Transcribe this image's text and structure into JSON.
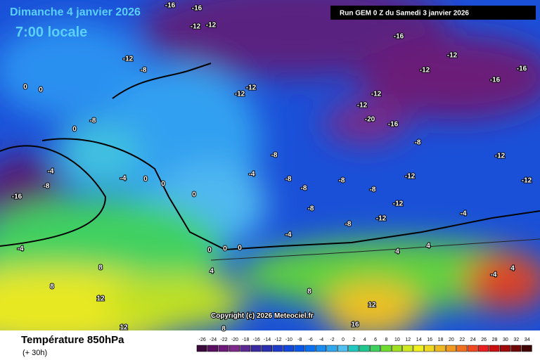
{
  "header": {
    "date": "Dimanche 4 janvier 2026",
    "time": "7:00 locale",
    "run": "Run GEM 0 Z du Samedi 3 janvier 2026"
  },
  "copyright": "Copyright (c) 2026 Meteociel.fr",
  "footer": {
    "title": "Température 850hPa",
    "lead": "(+ 30h)"
  },
  "contour_labels": [
    -16,
    -16,
    -12,
    -12,
    -16,
    -12,
    -8,
    -12,
    -12,
    -16,
    -16,
    -12,
    -12,
    -12,
    -12,
    -20,
    -16,
    -8,
    0,
    0,
    0,
    -16,
    -8,
    -4,
    -4,
    0,
    0,
    0,
    -8,
    -4,
    -8,
    -8,
    -8,
    -8,
    -12,
    -12,
    -12,
    -8,
    -12,
    -12,
    -4,
    -8,
    -8,
    -4,
    0,
    0,
    0,
    -4,
    4,
    4,
    4,
    8,
    8,
    8,
    12,
    12,
    16,
    12,
    8,
    4,
    -4
  ],
  "scale": {
    "ticks": [
      -26,
      -24,
      -22,
      -20,
      -18,
      -16,
      -14,
      -12,
      -10,
      -8,
      -6,
      -4,
      -2,
      0,
      2,
      4,
      6,
      8,
      10,
      12,
      14,
      16,
      18,
      20,
      22,
      24,
      26,
      28,
      30,
      32,
      34
    ],
    "colors": [
      "#3a0a3a",
      "#5a1060",
      "#6e1a78",
      "#7e2a8a",
      "#5a2a90",
      "#3a2aa0",
      "#2a30b0",
      "#1e3cc8",
      "#1448dc",
      "#0a58e8",
      "#0a70f0",
      "#1a8cf0",
      "#30a8f0",
      "#50c0f0",
      "#20c8c0",
      "#20c890",
      "#40d060",
      "#70dc30",
      "#a0e020",
      "#d0e820",
      "#f0f020",
      "#f0d820",
      "#f0b820",
      "#f09820",
      "#f07020",
      "#f04820",
      "#e82020",
      "#c81010",
      "#a00a0a",
      "#700808",
      "#400404"
    ]
  }
}
